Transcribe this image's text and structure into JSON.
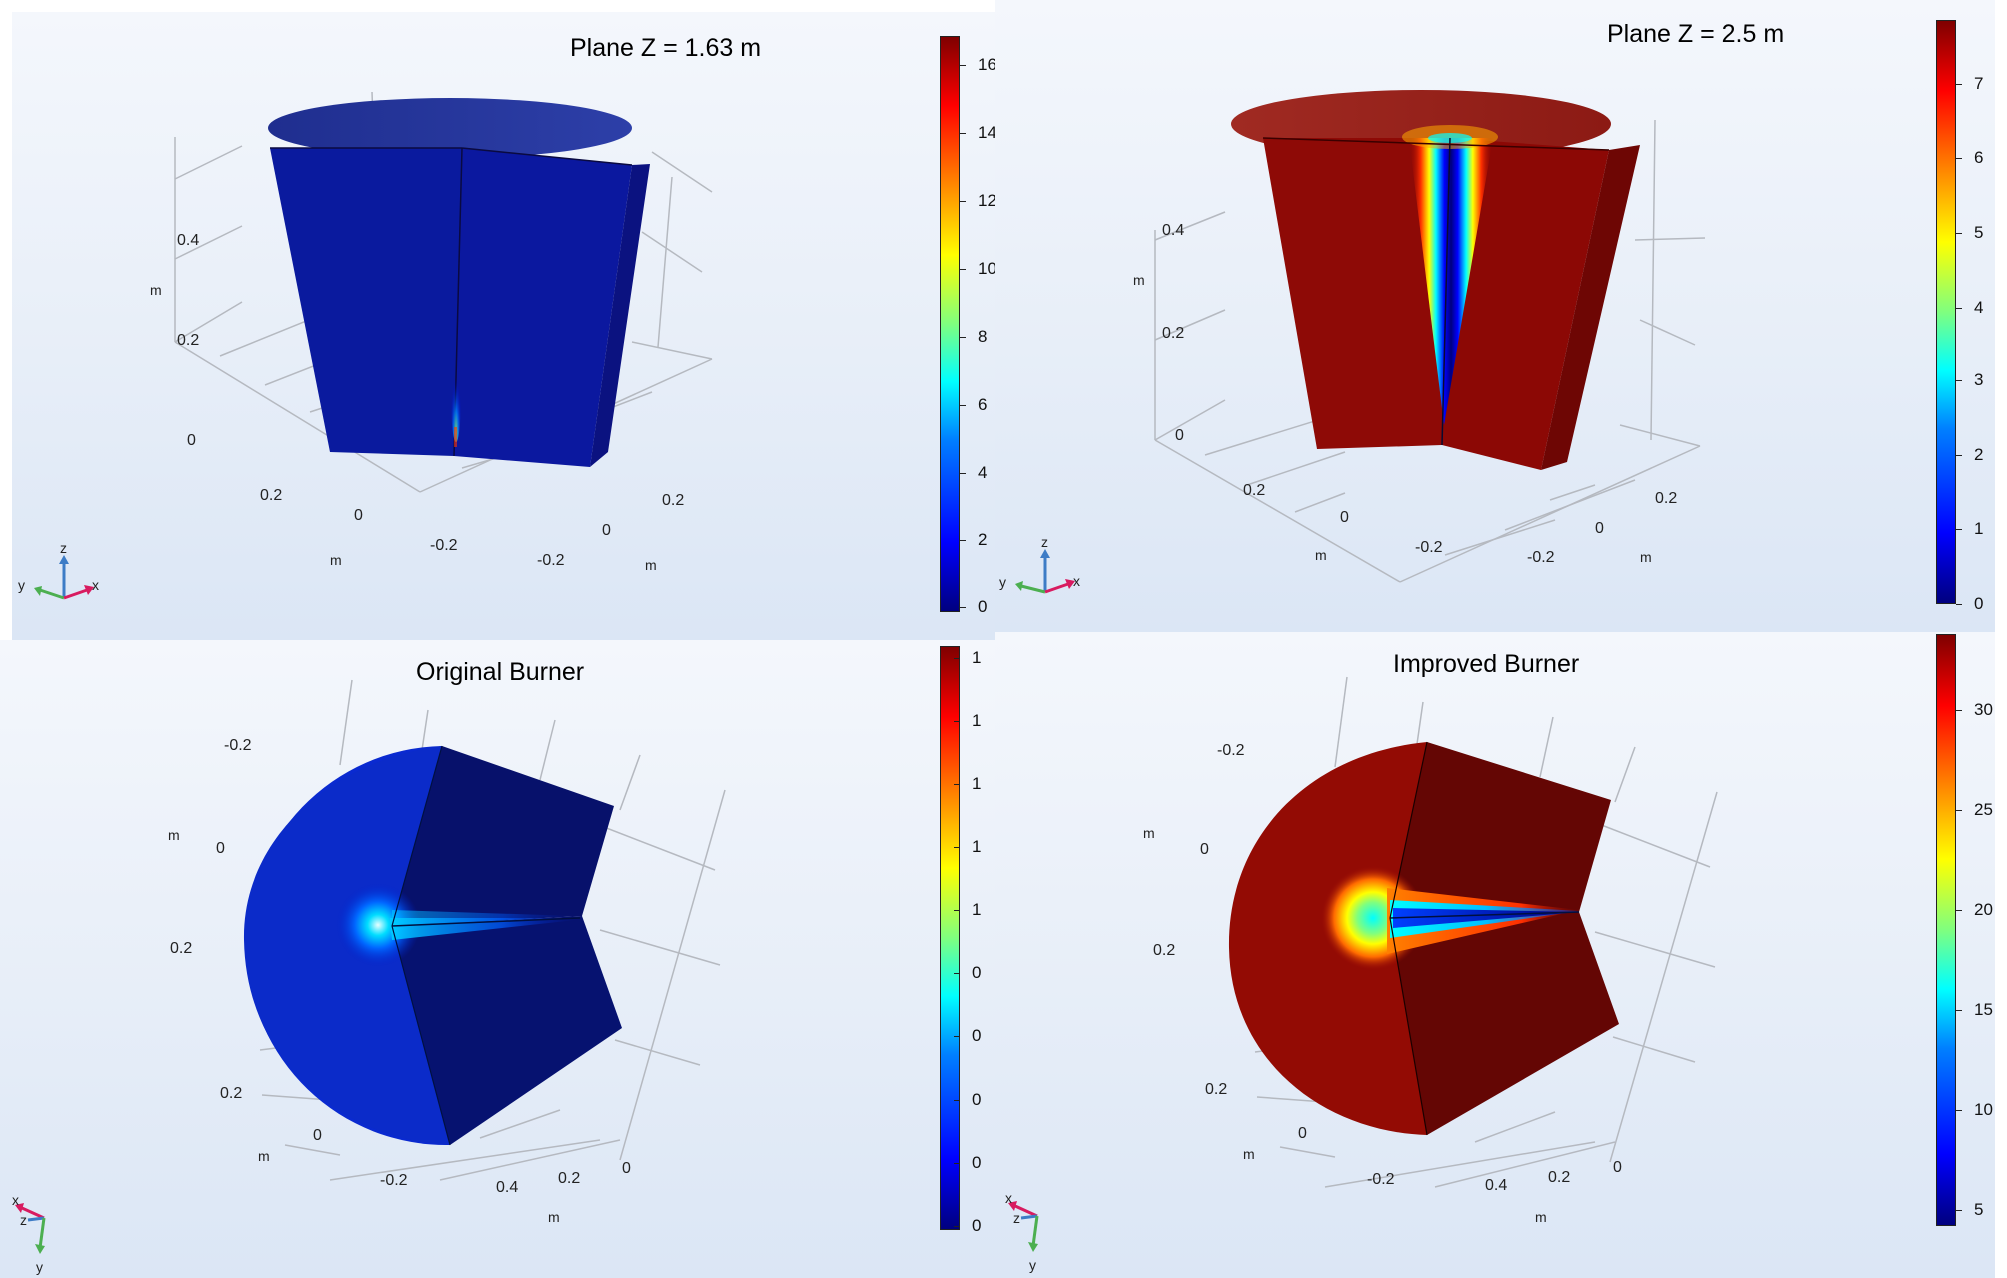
{
  "panels": [
    {
      "title": "Plane Z = 1.63 m",
      "colorbar_ticks": [
        "0",
        "2",
        "4",
        "6",
        "8",
        "10",
        "12",
        "14",
        "16"
      ],
      "axis_labels": {
        "z": [
          "0.4",
          "0.2",
          "0"
        ],
        "z_unit": "m",
        "y": [
          "0.2",
          "0",
          "-0.2"
        ],
        "y_unit": "m",
        "x": [
          "-0.2",
          "0",
          "0.2"
        ],
        "x_unit": "m"
      },
      "triad": {
        "a": "z",
        "b": "y",
        "c": "x"
      }
    },
    {
      "title": "Plane Z = 2.5 m",
      "colorbar_ticks": [
        "0",
        "1",
        "2",
        "3",
        "4",
        "5",
        "6",
        "7"
      ],
      "axis_labels": {
        "z": [
          "0.4",
          "0.2",
          "0"
        ],
        "z_unit": "m",
        "y": [
          "0.2",
          "0",
          "-0.2"
        ],
        "y_unit": "m",
        "x": [
          "-0.2",
          "0",
          "0.2"
        ],
        "x_unit": "m"
      },
      "triad": {
        "a": "z",
        "b": "y",
        "c": "x"
      }
    },
    {
      "title": "Original Burner",
      "colorbar_ticks": [
        "0",
        "0",
        "0",
        "0",
        "0",
        "1",
        "1",
        "1",
        "1",
        "1"
      ],
      "axis_labels": {
        "left": [
          "-0.2",
          "0",
          "0.2"
        ],
        "left_unit": "m",
        "bottom": [
          "0.2",
          "0",
          "-0.2",
          "0.4",
          "0.2",
          "0"
        ],
        "unit1": "m",
        "unit2": "m"
      },
      "triad": {
        "a": "x",
        "b": "z",
        "c": "y"
      }
    },
    {
      "title": "Improved Burner",
      "colorbar_ticks": [
        "5",
        "10",
        "15",
        "20",
        "25",
        "30"
      ],
      "axis_labels": {
        "left": [
          "-0.2",
          "0",
          "0.2"
        ],
        "left_unit": "m",
        "bottom": [
          "0.2",
          "0",
          "-0.2",
          "0.4",
          "0.2",
          "0"
        ],
        "unit1": "m",
        "unit2": "m"
      },
      "triad": {
        "a": "x",
        "b": "z",
        "c": "y"
      }
    }
  ],
  "colors": {
    "low": "#00007f",
    "high": "#7f0000",
    "background": "#e7eef8"
  }
}
